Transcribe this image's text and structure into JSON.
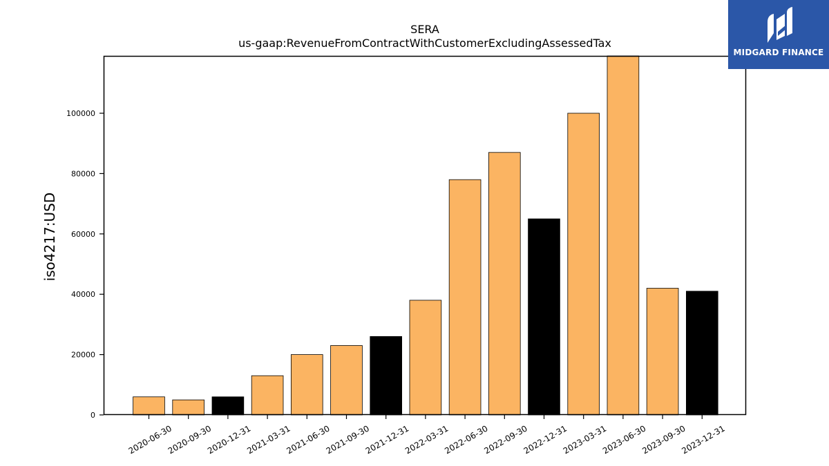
{
  "colors": {
    "bar_default": "#fbb462",
    "bar_highlight": "#000000",
    "bar_edge": "#000000",
    "logo_bg": "#2b57a8"
  },
  "logo": {
    "text": "MIDGARD FINANCE",
    "icon": "midgard-logo-icon"
  },
  "chart_data": {
    "type": "bar",
    "title": "SERA",
    "subtitle": "us-gaap:RevenueFromContractWithCustomerExcludingAssessedTax",
    "xlabel": "",
    "ylabel": "iso4217:USD",
    "ylim": [
      0,
      119000
    ],
    "yticks": [
      0,
      20000,
      40000,
      60000,
      80000,
      100000
    ],
    "grid": false,
    "categories": [
      "2020-06-30",
      "2020-09-30",
      "2020-12-31",
      "2021-03-31",
      "2021-06-30",
      "2021-09-30",
      "2021-12-31",
      "2022-03-31",
      "2022-06-30",
      "2022-09-30",
      "2022-12-31",
      "2023-03-31",
      "2023-06-30",
      "2023-09-30",
      "2023-12-31"
    ],
    "values": [
      6000,
      5000,
      6000,
      13000,
      20000,
      23000,
      26000,
      38000,
      78000,
      87000,
      65000,
      100000,
      119000,
      42000,
      41000
    ],
    "highlighted": [
      "2020-12-31",
      "2021-12-31",
      "2022-12-31",
      "2023-12-31"
    ]
  }
}
